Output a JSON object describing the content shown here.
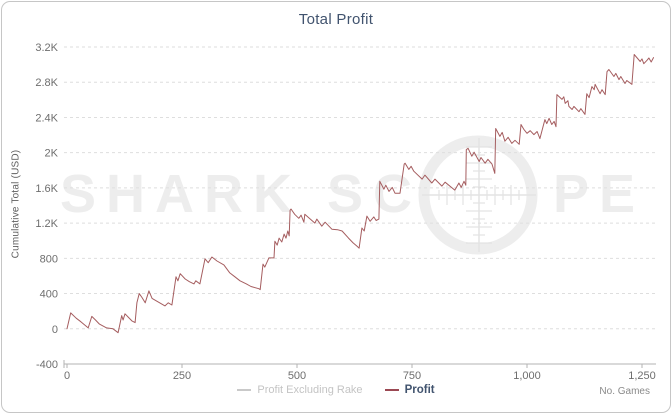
{
  "chart": {
    "title": "Total Profit",
    "y_axis_title": "Cumulative Total (USD)",
    "x_axis_title": "No. Games",
    "legend": {
      "items": [
        {
          "label": "Profit Excluding Rake",
          "swatch_color": "#c9c9c9",
          "enabled": false
        },
        {
          "label": "Profit",
          "swatch_color": "#9b4853",
          "enabled": true
        }
      ]
    },
    "colors": {
      "title_text": "#41536e",
      "line": "#a55d5f",
      "gridline": "#dedede",
      "axis": "#b3b3b3",
      "tick_text": "#6e6e6e",
      "watermark": "#ededed"
    }
  },
  "watermark": {
    "text_left": "SHARK SC",
    "text_right": "PE"
  },
  "chart_data": {
    "type": "line",
    "title": "Total Profit",
    "xlabel": "No. Games",
    "ylabel": "Cumulative Total (USD)",
    "xlim": [
      0,
      1320
    ],
    "ylim": [
      -400,
      3200
    ],
    "x_ticks": [
      0,
      250,
      500,
      750,
      1000,
      1250
    ],
    "x_tick_labels": [
      "0",
      "250",
      "500",
      "750",
      "1,000",
      "1,250"
    ],
    "y_ticks": [
      3200,
      2800,
      2400,
      2000,
      1600,
      1200,
      800,
      400,
      0,
      -400
    ],
    "y_tick_labels": [
      "3.2K",
      "2.8K",
      "2.4K",
      "2K",
      "1.6K",
      "1.2K",
      "800",
      "400",
      "0",
      "-400"
    ],
    "grid": "horizontal-dashed",
    "legend_position": "bottom-center",
    "series": [
      {
        "name": "Profit Excluding Rake",
        "color": "#c9c9c9",
        "visible": false,
        "points": []
      },
      {
        "name": "Profit",
        "color": "#a55d5f",
        "visible": true,
        "points": [
          [
            0,
            0
          ],
          [
            8,
            180
          ],
          [
            20,
            120
          ],
          [
            30,
            80
          ],
          [
            46,
            10
          ],
          [
            54,
            140
          ],
          [
            62,
            100
          ],
          [
            70,
            55
          ],
          [
            86,
            10
          ],
          [
            100,
            0
          ],
          [
            111,
            -45
          ],
          [
            119,
            150
          ],
          [
            122,
            100
          ],
          [
            126,
            170
          ],
          [
            141,
            90
          ],
          [
            148,
            70
          ],
          [
            152,
            295
          ],
          [
            157,
            400
          ],
          [
            163,
            355
          ],
          [
            170,
            295
          ],
          [
            178,
            430
          ],
          [
            185,
            345
          ],
          [
            200,
            300
          ],
          [
            213,
            260
          ],
          [
            220,
            295
          ],
          [
            228,
            270
          ],
          [
            237,
            590
          ],
          [
            241,
            545
          ],
          [
            246,
            625
          ],
          [
            257,
            565
          ],
          [
            266,
            535
          ],
          [
            276,
            510
          ],
          [
            280,
            545
          ],
          [
            289,
            510
          ],
          [
            300,
            795
          ],
          [
            307,
            750
          ],
          [
            315,
            815
          ],
          [
            326,
            770
          ],
          [
            341,
            725
          ],
          [
            354,
            635
          ],
          [
            365,
            590
          ],
          [
            376,
            545
          ],
          [
            390,
            510
          ],
          [
            400,
            480
          ],
          [
            417,
            455
          ],
          [
            420,
            445
          ],
          [
            426,
            735
          ],
          [
            430,
            700
          ],
          [
            439,
            805
          ],
          [
            450,
            805
          ],
          [
            452,
            995
          ],
          [
            457,
            950
          ],
          [
            461,
            1030
          ],
          [
            467,
            985
          ],
          [
            472,
            1075
          ],
          [
            476,
            1030
          ],
          [
            480,
            1110
          ],
          [
            483,
            1055
          ],
          [
            485,
            1345
          ],
          [
            487,
            1360
          ],
          [
            495,
            1300
          ],
          [
            504,
            1255
          ],
          [
            509,
            1290
          ],
          [
            515,
            1210
          ],
          [
            517,
            1300
          ],
          [
            528,
            1250
          ],
          [
            539,
            1200
          ],
          [
            543,
            1245
          ],
          [
            554,
            1165
          ],
          [
            561,
            1210
          ],
          [
            576,
            1130
          ],
          [
            588,
            1125
          ],
          [
            598,
            1110
          ],
          [
            612,
            1030
          ],
          [
            622,
            975
          ],
          [
            630,
            940
          ],
          [
            635,
            915
          ],
          [
            641,
            1145
          ],
          [
            646,
            1110
          ],
          [
            652,
            1280
          ],
          [
            659,
            1220
          ],
          [
            667,
            1270
          ],
          [
            672,
            1230
          ],
          [
            678,
            1245
          ],
          [
            680,
            1675
          ],
          [
            689,
            1585
          ],
          [
            693,
            1630
          ],
          [
            700,
            1560
          ],
          [
            707,
            1605
          ],
          [
            713,
            1540
          ],
          [
            724,
            1540
          ],
          [
            733,
            1870
          ],
          [
            735,
            1880
          ],
          [
            743,
            1810
          ],
          [
            748,
            1845
          ],
          [
            754,
            1790
          ],
          [
            772,
            1700
          ],
          [
            778,
            1745
          ],
          [
            793,
            1655
          ],
          [
            800,
            1700
          ],
          [
            815,
            1620
          ],
          [
            822,
            1665
          ],
          [
            843,
            1575
          ],
          [
            848,
            1620
          ],
          [
            852,
            1655
          ],
          [
            857,
            1605
          ],
          [
            863,
            1675
          ],
          [
            867,
            1630
          ],
          [
            868,
            2035
          ],
          [
            872,
            2050
          ],
          [
            880,
            1960
          ],
          [
            885,
            2005
          ],
          [
            896,
            1900
          ],
          [
            900,
            1945
          ],
          [
            909,
            1880
          ],
          [
            915,
            1925
          ],
          [
            924,
            1870
          ],
          [
            930,
            1765
          ],
          [
            932,
            2275
          ],
          [
            941,
            2185
          ],
          [
            946,
            2230
          ],
          [
            952,
            2130
          ],
          [
            959,
            2175
          ],
          [
            967,
            2105
          ],
          [
            974,
            2140
          ],
          [
            983,
            2095
          ],
          [
            987,
            2320
          ],
          [
            993,
            2265
          ],
          [
            1000,
            2220
          ],
          [
            1007,
            2250
          ],
          [
            1015,
            2205
          ],
          [
            1022,
            2240
          ],
          [
            1028,
            2160
          ],
          [
            1039,
            2375
          ],
          [
            1043,
            2330
          ],
          [
            1048,
            2390
          ],
          [
            1054,
            2320
          ],
          [
            1059,
            2355
          ],
          [
            1063,
            2295
          ],
          [
            1065,
            2660
          ],
          [
            1076,
            2605
          ],
          [
            1080,
            2635
          ],
          [
            1083,
            2560
          ],
          [
            1089,
            2590
          ],
          [
            1091,
            2525
          ],
          [
            1098,
            2490
          ],
          [
            1102,
            2525
          ],
          [
            1113,
            2465
          ],
          [
            1117,
            2500
          ],
          [
            1126,
            2435
          ],
          [
            1130,
            2670
          ],
          [
            1135,
            2625
          ],
          [
            1141,
            2750
          ],
          [
            1146,
            2715
          ],
          [
            1148,
            2775
          ],
          [
            1159,
            2670
          ],
          [
            1163,
            2715
          ],
          [
            1170,
            2660
          ],
          [
            1174,
            2920
          ],
          [
            1178,
            2945
          ],
          [
            1189,
            2865
          ],
          [
            1193,
            2900
          ],
          [
            1200,
            2830
          ],
          [
            1204,
            2865
          ],
          [
            1213,
            2785
          ],
          [
            1217,
            2820
          ],
          [
            1228,
            2775
          ],
          [
            1233,
            3115
          ],
          [
            1246,
            3035
          ],
          [
            1250,
            3065
          ],
          [
            1254,
            3010
          ],
          [
            1261,
            3050
          ],
          [
            1265,
            3075
          ],
          [
            1270,
            3030
          ],
          [
            1275,
            3080
          ]
        ]
      }
    ]
  }
}
